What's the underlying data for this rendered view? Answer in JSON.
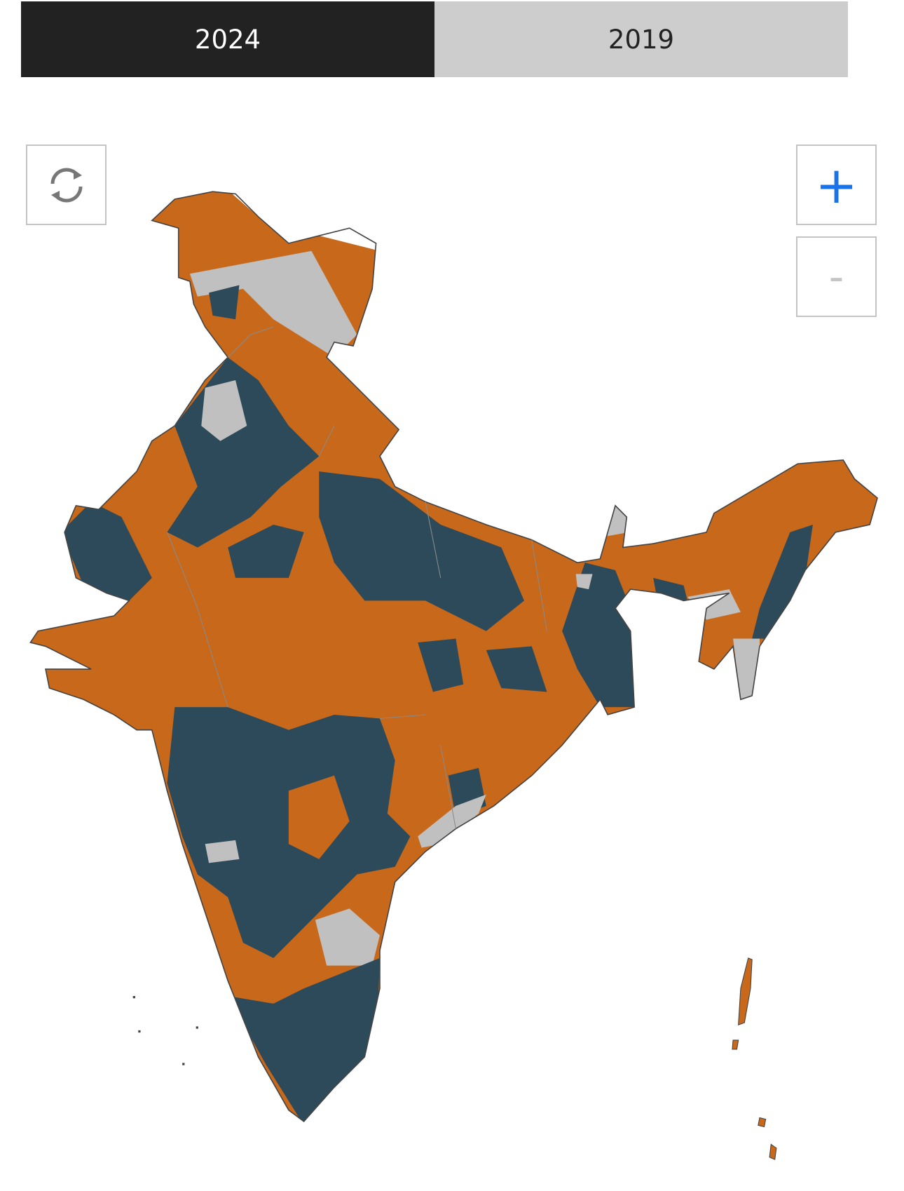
{
  "tabs": [
    "2024",
    "2019"
  ],
  "controls": {
    "zoom_in": "+",
    "zoom_out": "-"
  }
}
